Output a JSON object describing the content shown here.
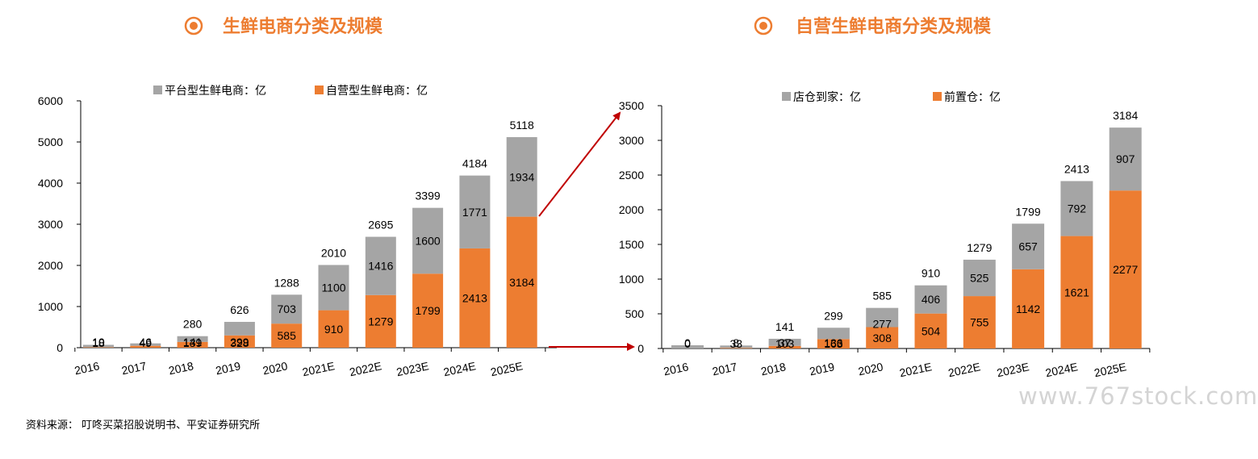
{
  "colors": {
    "platform": "#A5A5A5",
    "self": "#ED7D31",
    "title": "#ED7D31",
    "arrow": "#C00000",
    "axis": "#000000"
  },
  "source_note": "资料来源： 叮咚买菜招股说明书、平安证券研究所",
  "watermark": "www.767stock.com",
  "chart_data": [
    {
      "type": "bar",
      "stacked": true,
      "title": "生鲜电商分类及规模",
      "categories": [
        "2016",
        "2017",
        "2018",
        "2019",
        "2020",
        "2021E",
        "2022E",
        "2023E",
        "2024E",
        "2025E"
      ],
      "series": [
        {
          "name": "自营型生鲜电商：亿",
          "color": "#ED7D31",
          "values": [
            10,
            46,
            141,
            299,
            585,
            910,
            1279,
            1799,
            2413,
            3184
          ]
        },
        {
          "name": "平台型生鲜电商：亿",
          "color": "#A5A5A5",
          "values": [
            18,
            49,
            139,
            328,
            703,
            1100,
            1416,
            1600,
            1771,
            1934
          ]
        }
      ],
      "totals": [
        28,
        95,
        280,
        626,
        1288,
        2010,
        2695,
        3399,
        4184,
        5118
      ],
      "totals_labels": [
        "",
        "",
        "280",
        "626",
        "1288",
        "2010",
        "2695",
        "3399",
        "4184",
        "5118"
      ],
      "ylim": [
        0,
        6000
      ],
      "yticks": [
        0,
        1000,
        2000,
        3000,
        4000,
        5000,
        6000
      ],
      "legend_position": "top",
      "grid": false
    },
    {
      "type": "bar",
      "stacked": true,
      "title": "自营生鲜电商分类及规模",
      "categories": [
        "2016",
        "2017",
        "2018",
        "2019",
        "2020",
        "2021E",
        "2022E",
        "2023E",
        "2024E",
        "2025E"
      ],
      "series": [
        {
          "name": "前置仓：亿",
          "color": "#ED7D31",
          "values": [
            0,
            8,
            37,
            136,
            308,
            504,
            755,
            1142,
            1621,
            2277
          ]
        },
        {
          "name": "店仓到家：亿",
          "color": "#A5A5A5",
          "values": [
            0,
            33,
            103,
            163,
            277,
            406,
            525,
            657,
            792,
            907
          ]
        }
      ],
      "totals": [
        0,
        41,
        141,
        299,
        585,
        910,
        1279,
        1799,
        2413,
        3184
      ],
      "totals_labels": [
        "",
        "",
        "141",
        "299",
        "585",
        "910",
        "1279",
        "1799",
        "2413",
        "3184"
      ],
      "ylim": [
        0,
        3500
      ],
      "yticks": [
        0,
        500,
        1000,
        1500,
        2000,
        2500,
        3000,
        3500
      ],
      "legend_position": "top",
      "grid": false
    }
  ]
}
